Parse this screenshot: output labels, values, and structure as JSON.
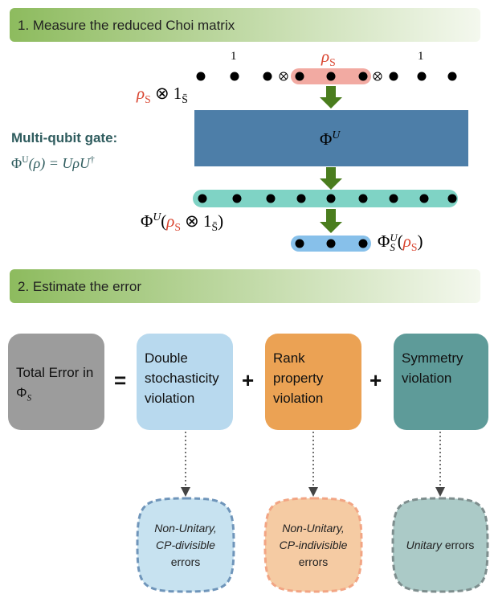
{
  "step1": {
    "title": "1. Measure the reduced Choi matrix",
    "identity_left": "1",
    "identity_right": "1",
    "rho_label": [
      "ρ",
      "S"
    ],
    "input_label": [
      "ρ",
      "S",
      "⊗ 1",
      "S̄"
    ],
    "gate_title": "Multi-qubit gate:",
    "gate_formula": [
      "Φ",
      "U",
      "(ρ) = UρU",
      "†"
    ],
    "gate_symbol": [
      "Φ",
      "U"
    ],
    "output_label": [
      "Φ",
      "U",
      "(",
      "ρ",
      "S",
      " ⊗ 1",
      "S̄",
      ")"
    ],
    "reduced_label": [
      "Φ",
      "U",
      "S",
      "(",
      "ρ",
      "S",
      ")"
    ]
  },
  "step2": {
    "title": "2. Estimate the error",
    "total": [
      "Total Error in Φ",
      "S"
    ],
    "equals": "=",
    "plus": "+",
    "components": [
      "Double stochasticity violation",
      "Rank property violation",
      "Symmetry violation"
    ],
    "errors": [
      {
        "italic": "Non-Unitary, CP-divisible",
        "plain": "errors"
      },
      {
        "italic": "Non-Unitary, CP-indivisible",
        "plain": "errors"
      },
      {
        "italic": "Unitary",
        "plain": "errors"
      }
    ]
  }
}
